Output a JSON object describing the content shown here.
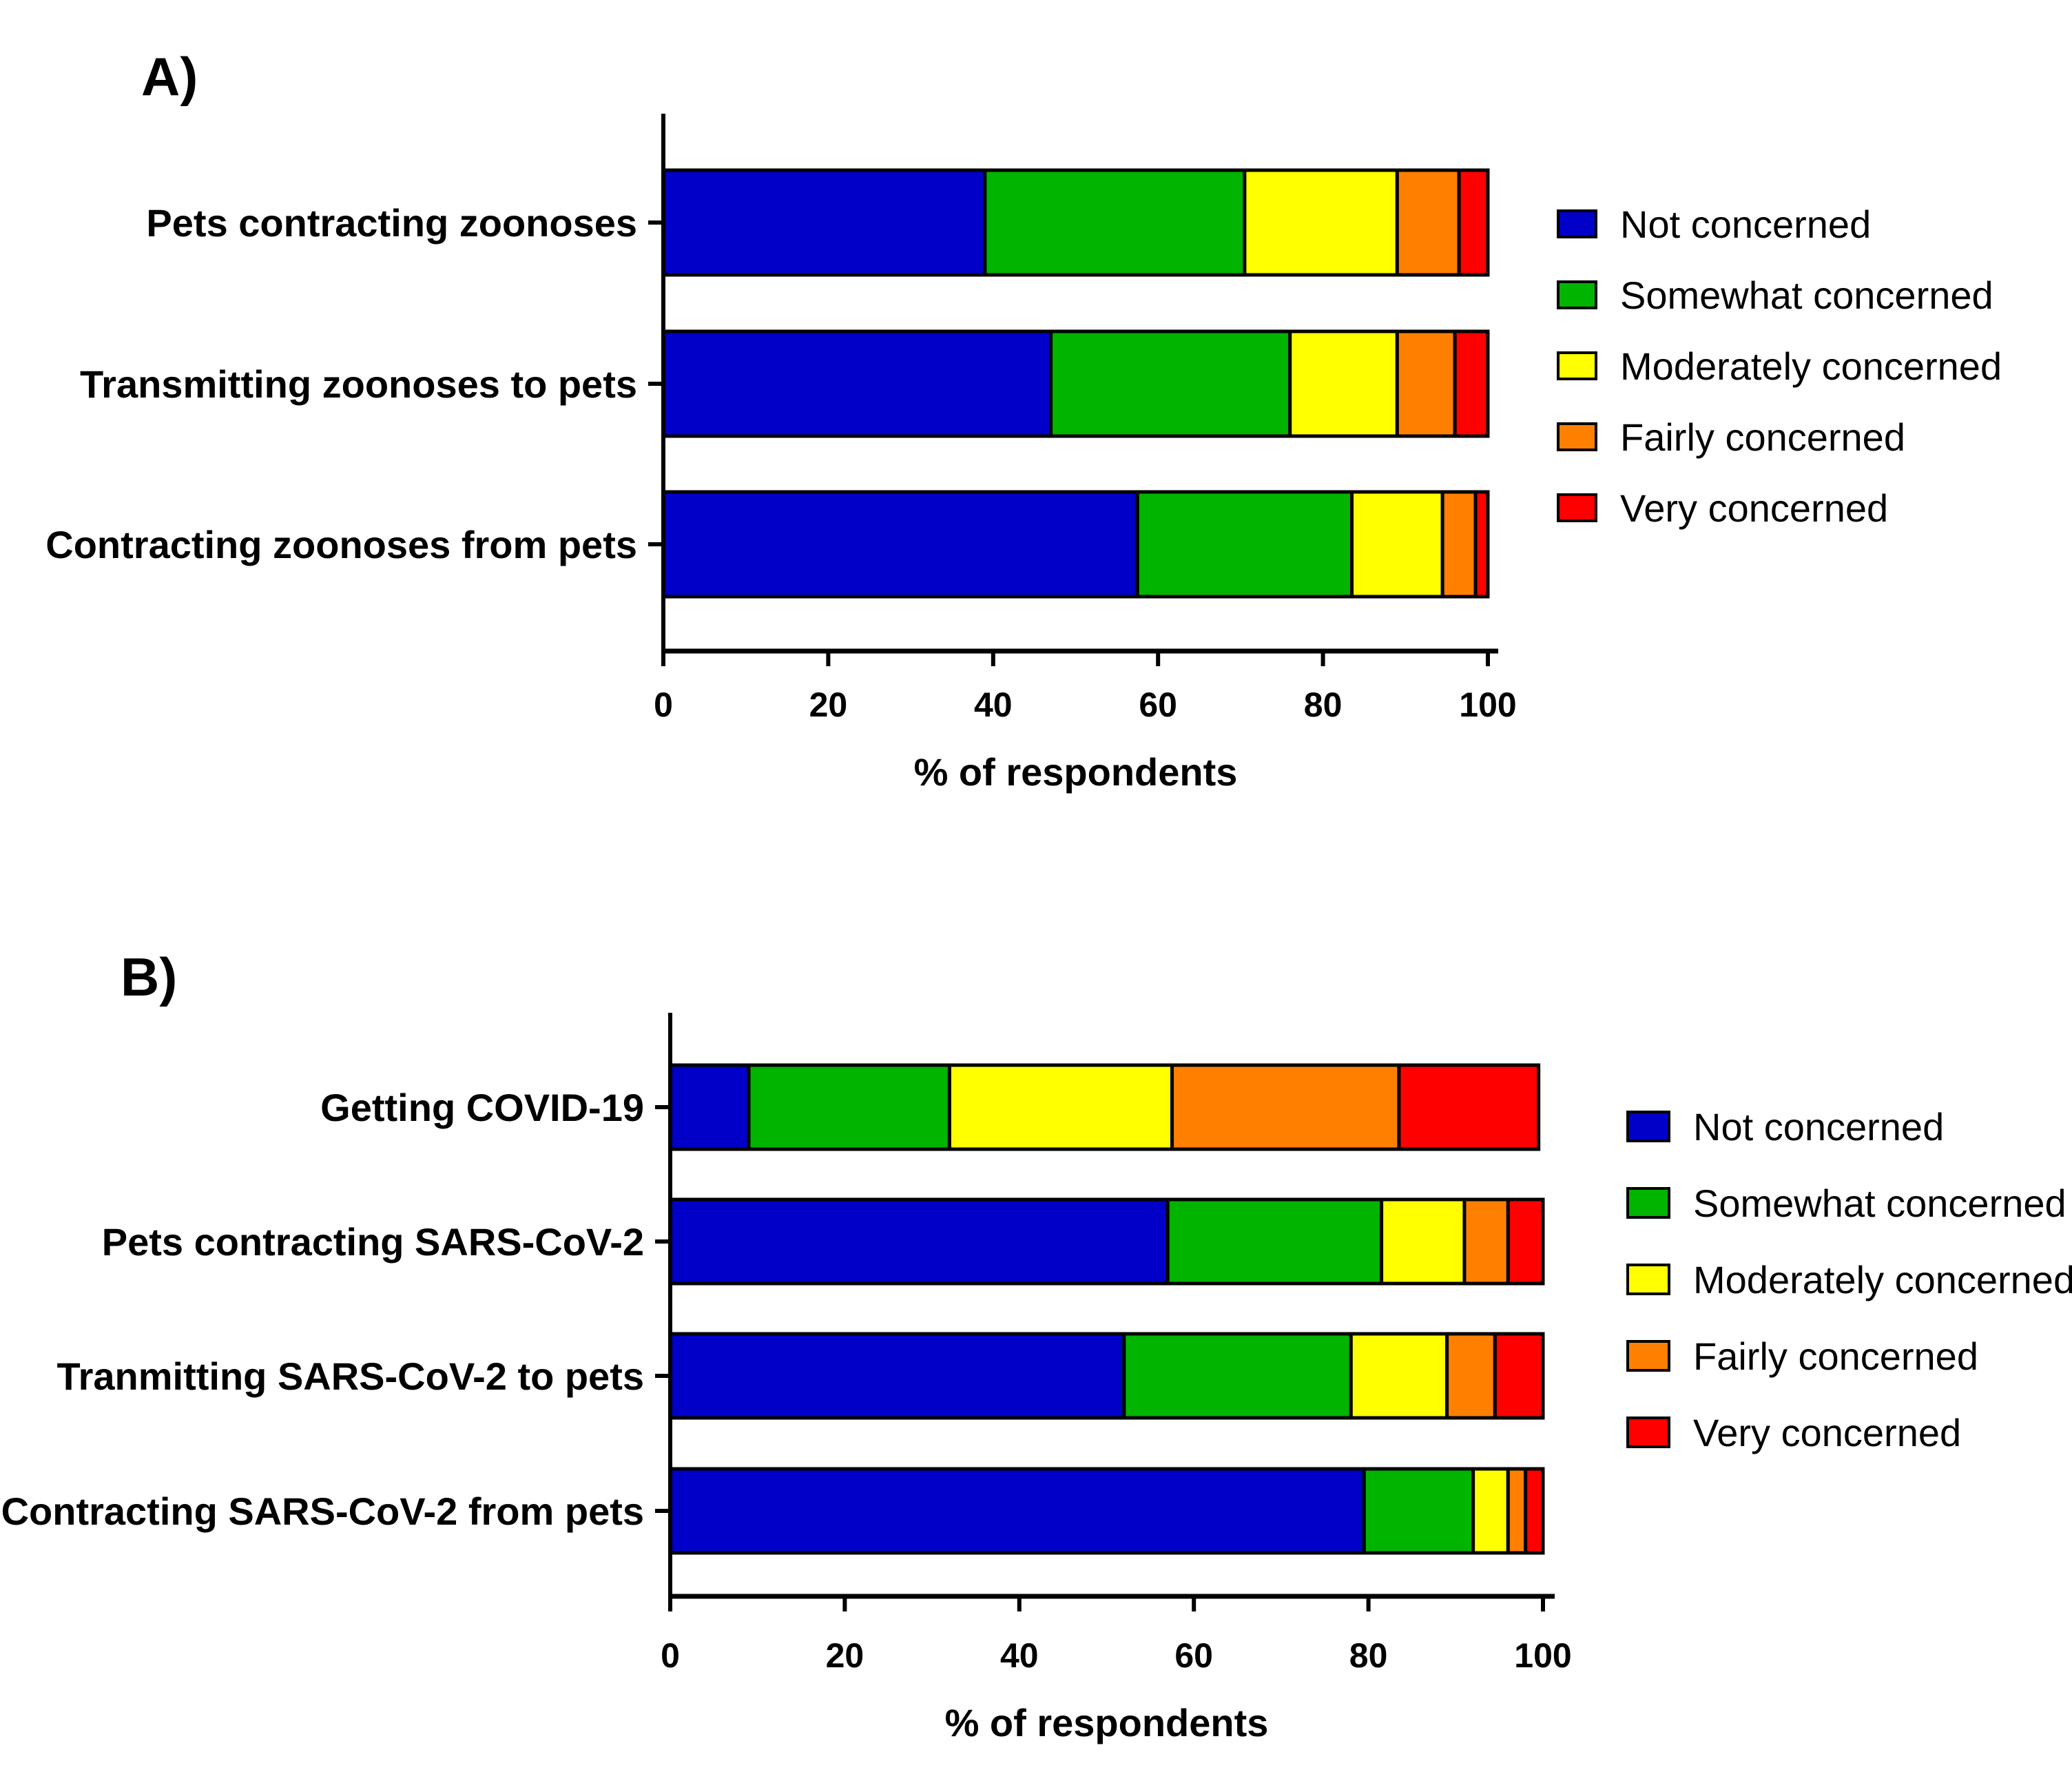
{
  "figure": {
    "colors": {
      "Not concerned": "#0000C8",
      "Somewhat concerned": "#00B400",
      "Moderately concerned": "#FFFF00",
      "Fairly concerned": "#FF8000",
      "Very concerned": "#FF0000",
      "outline": "#000000"
    }
  },
  "chart_data": [
    {
      "type": "bar",
      "orientation": "horizontal",
      "stacked": true,
      "panel_label": "A)",
      "xlabel": "% of respondents",
      "ylabel": "",
      "xlim": [
        0,
        100
      ],
      "xticks": [
        0,
        20,
        40,
        60,
        80,
        100
      ],
      "legend_position": "right",
      "categories": [
        "Pets contracting zoonoses",
        "Transmitting zoonoses to pets",
        "Contracting zoonoses from pets"
      ],
      "series": [
        {
          "name": "Not concerned",
          "values": [
            39,
            47,
            57.5
          ]
        },
        {
          "name": "Somewhat concerned",
          "values": [
            31.5,
            29,
            26
          ]
        },
        {
          "name": "Moderately concerned",
          "values": [
            18.5,
            13,
            11
          ]
        },
        {
          "name": "Fairly concerned",
          "values": [
            7.5,
            7,
            4
          ]
        },
        {
          "name": "Very concerned",
          "values": [
            3.5,
            4,
            1.5
          ]
        }
      ]
    },
    {
      "type": "bar",
      "orientation": "horizontal",
      "stacked": true,
      "panel_label": "B)",
      "xlabel": "% of respondents",
      "ylabel": "",
      "xlim": [
        0,
        100
      ],
      "xticks": [
        0,
        20,
        40,
        60,
        80,
        100
      ],
      "legend_position": "right",
      "categories": [
        "Getting COVID-19",
        "Pets contracting SARS-CoV-2",
        "Tranmitting SARS-CoV-2 to pets",
        "Contracting SARS-CoV-2 from pets"
      ],
      "series": [
        {
          "name": "Not concerned",
          "values": [
            9,
            57,
            52,
            79.5
          ]
        },
        {
          "name": "Somewhat concerned",
          "values": [
            23,
            24.5,
            26,
            12.5
          ]
        },
        {
          "name": "Moderately concerned",
          "values": [
            25.5,
            9.5,
            11,
            4
          ]
        },
        {
          "name": "Fairly concerned",
          "values": [
            26,
            5,
            5.5,
            2
          ]
        },
        {
          "name": "Very concerned",
          "values": [
            16,
            4,
            5.5,
            2
          ]
        }
      ]
    }
  ]
}
